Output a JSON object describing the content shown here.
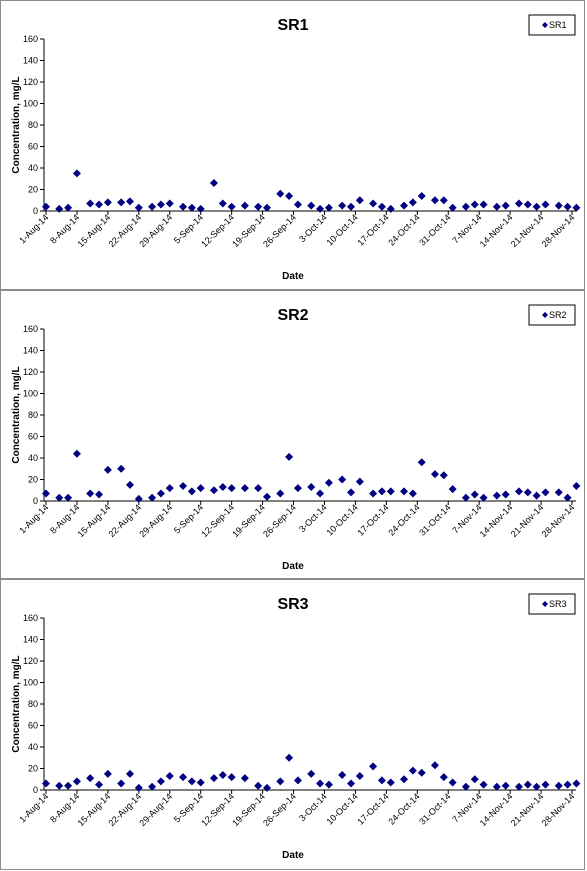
{
  "chart_data": [
    {
      "type": "scatter",
      "title": "SR1",
      "xlabel": "Date",
      "ylabel": "Concentration, mg/L",
      "ylim": [
        0,
        160
      ],
      "yticks": [
        "0",
        "20",
        "40",
        "60",
        "80",
        "100",
        "120",
        "140",
        "160"
      ],
      "xlim": [
        "2014-08-01",
        "2014-11-28"
      ],
      "xticks": [
        "1-Aug-14",
        "8-Aug-14",
        "15-Aug-14",
        "22-Aug-14",
        "29-Aug-14",
        "5-Sep-14",
        "12-Sep-14",
        "19-Sep-14",
        "26-Sep-14",
        "3-Oct-14",
        "10-Oct-14",
        "17-Oct-14",
        "24-Oct-14",
        "31-Oct-14",
        "7-Nov-14",
        "14-Nov-14",
        "21-Nov-14",
        "28-Nov-14"
      ],
      "legend_position": "top-right",
      "color": "#000080",
      "series": [
        {
          "name": "SR1",
          "x": [
            "2014-08-01",
            "2014-08-04",
            "2014-08-06",
            "2014-08-08",
            "2014-08-11",
            "2014-08-13",
            "2014-08-15",
            "2014-08-18",
            "2014-08-20",
            "2014-08-22",
            "2014-08-25",
            "2014-08-27",
            "2014-08-29",
            "2014-09-01",
            "2014-09-03",
            "2014-09-05",
            "2014-09-08",
            "2014-09-10",
            "2014-09-12",
            "2014-09-15",
            "2014-09-18",
            "2014-09-20",
            "2014-09-23",
            "2014-09-25",
            "2014-09-27",
            "2014-09-30",
            "2014-10-02",
            "2014-10-04",
            "2014-10-07",
            "2014-10-09",
            "2014-10-11",
            "2014-10-14",
            "2014-10-16",
            "2014-10-18",
            "2014-10-21",
            "2014-10-23",
            "2014-10-25",
            "2014-10-28",
            "2014-10-30",
            "2014-11-01",
            "2014-11-04",
            "2014-11-06",
            "2014-11-08",
            "2014-11-11",
            "2014-11-13",
            "2014-11-16",
            "2014-11-18",
            "2014-11-20",
            "2014-11-22",
            "2014-11-25",
            "2014-11-27",
            "2014-11-29"
          ],
          "y": [
            4,
            2,
            3,
            35,
            7,
            6,
            8,
            8,
            9,
            3,
            4,
            6,
            7,
            4,
            3,
            2,
            26,
            7,
            4,
            5,
            4,
            3,
            16,
            14,
            6,
            5,
            2,
            3,
            5,
            4,
            10,
            7,
            4,
            2,
            5,
            8,
            14,
            10,
            10,
            3,
            4,
            6,
            6,
            4,
            5,
            7,
            6,
            4,
            6,
            5,
            4,
            3
          ]
        }
      ]
    },
    {
      "type": "scatter",
      "title": "SR2",
      "xlabel": "Date",
      "ylabel": "Concentration, mg/L",
      "ylim": [
        0,
        160
      ],
      "yticks": [
        "0",
        "20",
        "40",
        "60",
        "80",
        "100",
        "120",
        "140",
        "160"
      ],
      "xlim": [
        "2014-08-01",
        "2014-11-28"
      ],
      "xticks": [
        "1-Aug-14",
        "8-Aug-14",
        "15-Aug-14",
        "22-Aug-14",
        "29-Aug-14",
        "5-Sep-14",
        "12-Sep-14",
        "19-Sep-14",
        "26-Sep-14",
        "3-Oct-14",
        "10-Oct-14",
        "17-Oct-14",
        "24-Oct-14",
        "31-Oct-14",
        "7-Nov-14",
        "14-Nov-14",
        "21-Nov-14",
        "28-Nov-14"
      ],
      "legend_position": "top-right",
      "color": "#000080",
      "series": [
        {
          "name": "SR2",
          "x": [
            "2014-08-01",
            "2014-08-04",
            "2014-08-06",
            "2014-08-08",
            "2014-08-11",
            "2014-08-13",
            "2014-08-15",
            "2014-08-18",
            "2014-08-20",
            "2014-08-22",
            "2014-08-25",
            "2014-08-27",
            "2014-08-29",
            "2014-09-01",
            "2014-09-03",
            "2014-09-05",
            "2014-09-08",
            "2014-09-10",
            "2014-09-12",
            "2014-09-15",
            "2014-09-18",
            "2014-09-20",
            "2014-09-23",
            "2014-09-25",
            "2014-09-27",
            "2014-09-30",
            "2014-10-02",
            "2014-10-04",
            "2014-10-07",
            "2014-10-09",
            "2014-10-11",
            "2014-10-14",
            "2014-10-16",
            "2014-10-18",
            "2014-10-21",
            "2014-10-23",
            "2014-10-25",
            "2014-10-28",
            "2014-10-30",
            "2014-11-01",
            "2014-11-04",
            "2014-11-06",
            "2014-11-08",
            "2014-11-11",
            "2014-11-13",
            "2014-11-16",
            "2014-11-18",
            "2014-11-20",
            "2014-11-22",
            "2014-11-25",
            "2014-11-27",
            "2014-11-29"
          ],
          "y": [
            7,
            3,
            3,
            44,
            7,
            6,
            29,
            30,
            15,
            2,
            3,
            7,
            12,
            14,
            9,
            12,
            10,
            13,
            12,
            12,
            12,
            4,
            7,
            41,
            12,
            13,
            7,
            17,
            20,
            8,
            18,
            7,
            9,
            9,
            9,
            7,
            36,
            25,
            24,
            11,
            3,
            6,
            3,
            5,
            6,
            9,
            8,
            5,
            8,
            8,
            3,
            14
          ]
        }
      ]
    },
    {
      "type": "scatter",
      "title": "SR3",
      "xlabel": "Date",
      "ylabel": "Concentration, mg/L",
      "ylim": [
        0,
        160
      ],
      "yticks": [
        "0",
        "20",
        "40",
        "60",
        "80",
        "100",
        "120",
        "140",
        "160"
      ],
      "xlim": [
        "2014-08-01",
        "2014-11-28"
      ],
      "xticks": [
        "1-Aug-14",
        "8-Aug-14",
        "15-Aug-14",
        "22-Aug-14",
        "29-Aug-14",
        "5-Sep-14",
        "12-Sep-14",
        "19-Sep-14",
        "26-Sep-14",
        "3-Oct-14",
        "10-Oct-14",
        "17-Oct-14",
        "24-Oct-14",
        "31-Oct-14",
        "7-Nov-14",
        "14-Nov-14",
        "21-Nov-14",
        "28-Nov-14"
      ],
      "legend_position": "top-right",
      "color": "#000080",
      "series": [
        {
          "name": "SR3",
          "x": [
            "2014-08-01",
            "2014-08-04",
            "2014-08-06",
            "2014-08-08",
            "2014-08-11",
            "2014-08-13",
            "2014-08-15",
            "2014-08-18",
            "2014-08-20",
            "2014-08-22",
            "2014-08-25",
            "2014-08-27",
            "2014-08-29",
            "2014-09-01",
            "2014-09-03",
            "2014-09-05",
            "2014-09-08",
            "2014-09-10",
            "2014-09-12",
            "2014-09-15",
            "2014-09-18",
            "2014-09-20",
            "2014-09-23",
            "2014-09-25",
            "2014-09-27",
            "2014-09-30",
            "2014-10-02",
            "2014-10-04",
            "2014-10-07",
            "2014-10-09",
            "2014-10-11",
            "2014-10-14",
            "2014-10-16",
            "2014-10-18",
            "2014-10-21",
            "2014-10-23",
            "2014-10-25",
            "2014-10-28",
            "2014-10-30",
            "2014-11-01",
            "2014-11-04",
            "2014-11-06",
            "2014-11-08",
            "2014-11-11",
            "2014-11-13",
            "2014-11-16",
            "2014-11-18",
            "2014-11-20",
            "2014-11-22",
            "2014-11-25",
            "2014-11-27",
            "2014-11-29"
          ],
          "y": [
            6,
            4,
            4,
            8,
            11,
            5,
            15,
            6,
            15,
            2,
            3,
            8,
            13,
            12,
            8,
            7,
            11,
            14,
            12,
            11,
            4,
            2,
            8,
            30,
            9,
            15,
            6,
            5,
            14,
            6,
            13,
            22,
            9,
            7,
            10,
            18,
            16,
            23,
            12,
            7,
            3,
            10,
            5,
            3,
            4,
            3,
            5,
            3,
            5,
            4,
            5,
            6
          ]
        }
      ]
    }
  ]
}
